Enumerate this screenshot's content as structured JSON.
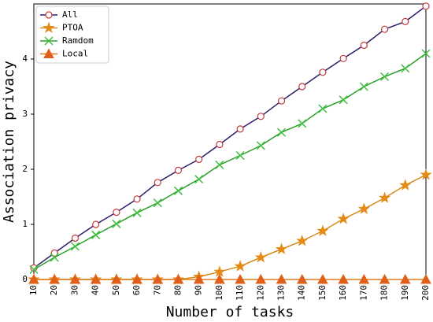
{
  "chart_data": {
    "type": "line",
    "x_label": "Number of tasks",
    "y_label": "Association privacy",
    "x": [
      10,
      20,
      30,
      40,
      50,
      60,
      70,
      80,
      90,
      100,
      110,
      120,
      130,
      140,
      150,
      160,
      170,
      180,
      190,
      200
    ],
    "xlim": [
      10,
      200
    ],
    "xticks": [
      10,
      20,
      30,
      40,
      50,
      60,
      70,
      80,
      90,
      100,
      110,
      120,
      130,
      140,
      150,
      160,
      170,
      180,
      190,
      200
    ],
    "ylim": [
      0,
      5
    ],
    "yticks": [
      0,
      1,
      2,
      3,
      4
    ],
    "grid": false,
    "legend": "upper left",
    "series": [
      {
        "name": "All",
        "color": "#2e1d6b",
        "marker": "circle",
        "marker_color": "#c0393b",
        "values": [
          0.21,
          0.48,
          0.75,
          1.0,
          1.22,
          1.46,
          1.76,
          1.98,
          2.18,
          2.45,
          2.73,
          2.96,
          3.24,
          3.5,
          3.76,
          4.01,
          4.25,
          4.54,
          4.68,
          4.96
        ]
      },
      {
        "name": "PTOA",
        "color": "#d98a1c",
        "marker": "star",
        "marker_color": "#e58a14",
        "values": [
          0,
          0,
          0,
          0,
          0,
          0,
          0,
          0,
          0.05,
          0.14,
          0.24,
          0.4,
          0.55,
          0.7,
          0.88,
          1.1,
          1.28,
          1.48,
          1.71,
          1.9
        ]
      },
      {
        "name": "Ramdom",
        "color": "#2ca02c",
        "marker": "x",
        "marker_color": "#3cbf3c",
        "values": [
          0.18,
          0.4,
          0.6,
          0.81,
          1.01,
          1.21,
          1.39,
          1.61,
          1.82,
          2.08,
          2.25,
          2.43,
          2.67,
          2.83,
          3.1,
          3.26,
          3.5,
          3.68,
          3.83,
          4.1
        ]
      },
      {
        "name": "Local",
        "color": "#e07b1a",
        "marker": "triangle",
        "marker_color": "#e0601a",
        "values": [
          0,
          0,
          0,
          0,
          0,
          0,
          0,
          0,
          0,
          0,
          0,
          0,
          0,
          0,
          0,
          0,
          0,
          0,
          0,
          0
        ]
      }
    ]
  }
}
